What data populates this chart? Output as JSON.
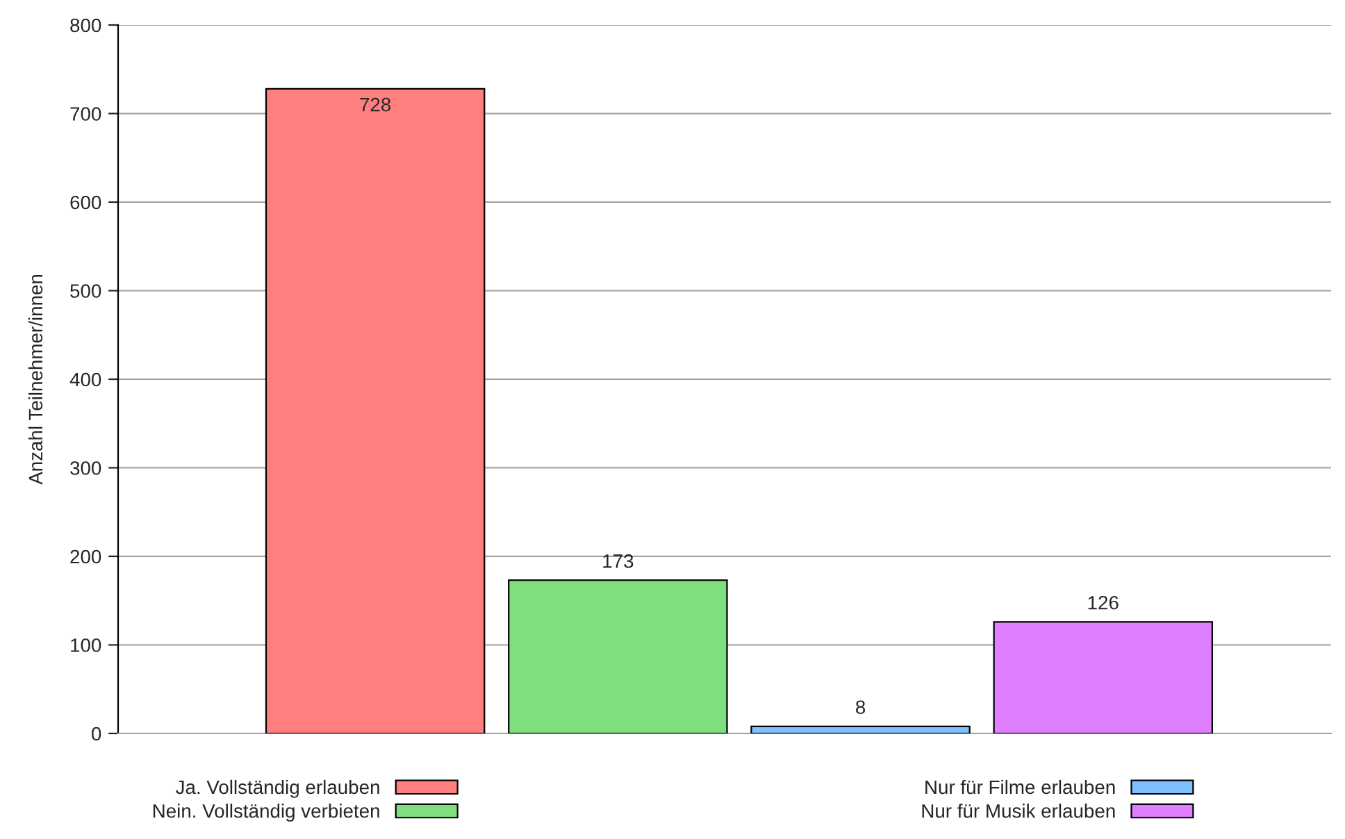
{
  "chart_data": {
    "type": "bar",
    "ylabel": "Anzahl Teilnehmer/innen",
    "categories": [
      null
    ],
    "series": [
      {
        "name": "Ja. Vollständig erlauben",
        "color": "#ff7f7f",
        "values": [
          728
        ]
      },
      {
        "name": "Nein. Vollständig verbieten",
        "color": "#7fdf7f",
        "values": [
          173
        ]
      },
      {
        "name": "Nur für Filme erlauben",
        "color": "#7fbfff",
        "values": [
          8
        ]
      },
      {
        "name": "Nur für Musik erlauben",
        "color": "#df7fff",
        "values": [
          126
        ]
      }
    ],
    "ylim": [
      0,
      800
    ],
    "yticks": [
      0,
      100,
      200,
      300,
      400,
      500,
      600,
      700,
      800
    ],
    "grid": "y",
    "legend": "bottom",
    "data_labels": true,
    "tick_labels": "y"
  }
}
